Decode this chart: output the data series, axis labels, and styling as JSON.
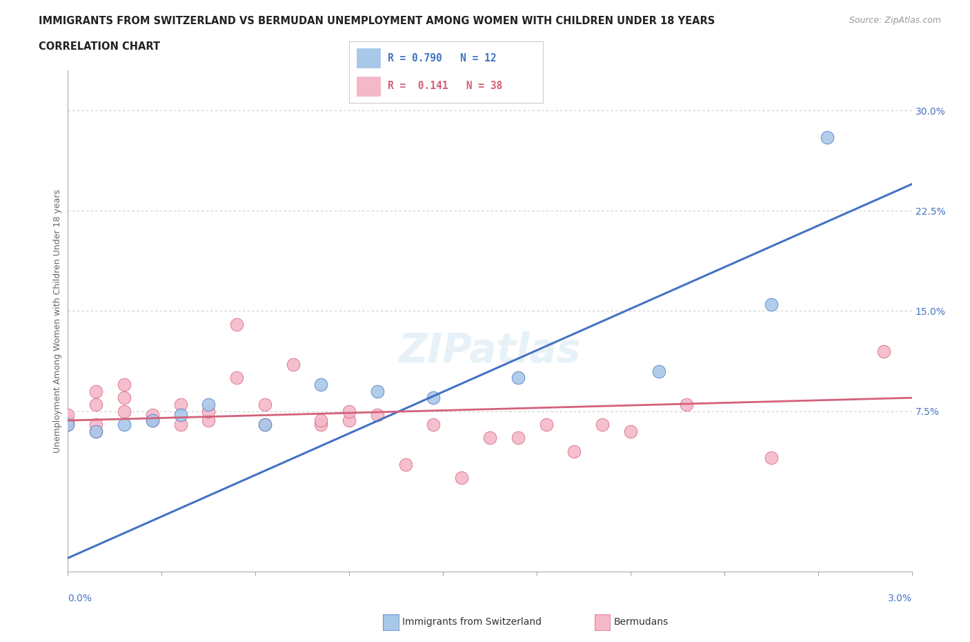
{
  "title_line1": "IMMIGRANTS FROM SWITZERLAND VS BERMUDAN UNEMPLOYMENT AMONG WOMEN WITH CHILDREN UNDER 18 YEARS",
  "title_line2": "CORRELATION CHART",
  "source": "Source: ZipAtlas.com",
  "xlabel_bottom_left": "0.0%",
  "xlabel_bottom_right": "3.0%",
  "ylabel": "Unemployment Among Women with Children Under 18 years",
  "xmin": 0.0,
  "xmax": 0.03,
  "ymin": -0.045,
  "ymax": 0.33,
  "yticks": [
    0.075,
    0.15,
    0.225,
    0.3
  ],
  "ytick_labels": [
    "7.5%",
    "15.0%",
    "22.5%",
    "30.0%"
  ],
  "color_blue": "#a8c8e8",
  "color_blue_line": "#4472C4",
  "color_pink": "#f4b8c8",
  "color_pink_line": "#d4607a",
  "switzerland_x": [
    0.0,
    0.001,
    0.002,
    0.003,
    0.004,
    0.005,
    0.007,
    0.009,
    0.011,
    0.013,
    0.016,
    0.021,
    0.025,
    0.027
  ],
  "switzerland_y": [
    0.065,
    0.06,
    0.065,
    0.068,
    0.072,
    0.08,
    0.065,
    0.095,
    0.09,
    0.085,
    0.1,
    0.105,
    0.155,
    0.28
  ],
  "bermuda_x": [
    0.0,
    0.0,
    0.0,
    0.001,
    0.001,
    0.001,
    0.001,
    0.002,
    0.002,
    0.002,
    0.003,
    0.003,
    0.004,
    0.004,
    0.005,
    0.005,
    0.006,
    0.006,
    0.007,
    0.007,
    0.008,
    0.009,
    0.009,
    0.01,
    0.01,
    0.011,
    0.012,
    0.013,
    0.014,
    0.015,
    0.016,
    0.017,
    0.018,
    0.019,
    0.02,
    0.022,
    0.025,
    0.029
  ],
  "bermuda_y": [
    0.065,
    0.068,
    0.072,
    0.06,
    0.065,
    0.08,
    0.09,
    0.075,
    0.085,
    0.095,
    0.068,
    0.072,
    0.065,
    0.08,
    0.068,
    0.075,
    0.1,
    0.14,
    0.08,
    0.065,
    0.11,
    0.065,
    0.068,
    0.068,
    0.075,
    0.072,
    0.035,
    0.065,
    0.025,
    0.055,
    0.055,
    0.065,
    0.045,
    0.065,
    0.06,
    0.08,
    0.04,
    0.12
  ],
  "blue_line_x0": 0.0,
  "blue_line_y0": -0.035,
  "blue_line_x1": 0.03,
  "blue_line_y1": 0.245,
  "pink_line_x0": 0.0,
  "pink_line_y0": 0.068,
  "pink_line_x1": 0.03,
  "pink_line_y1": 0.085
}
